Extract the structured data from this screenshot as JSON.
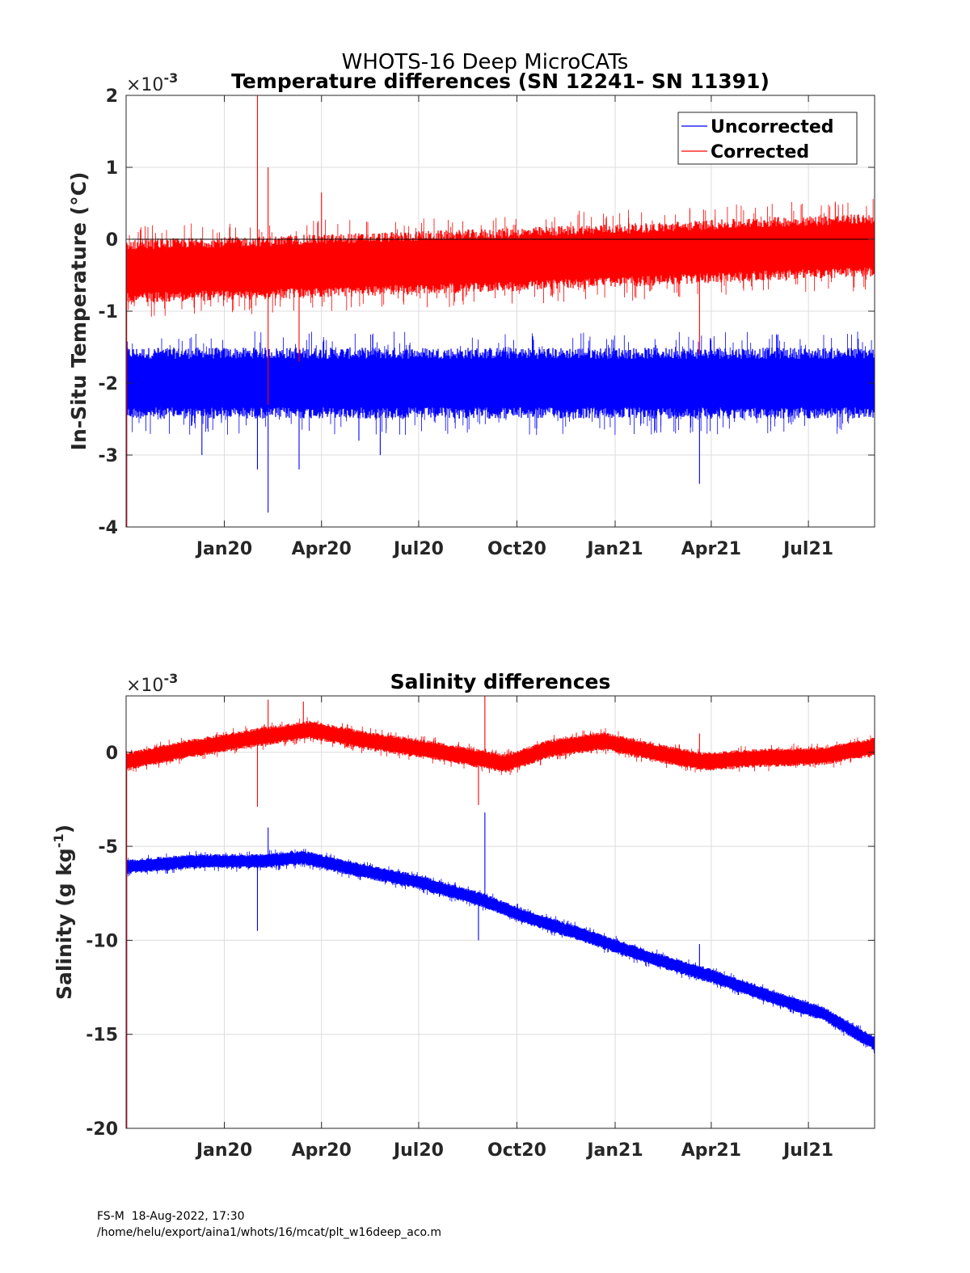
{
  "figure": {
    "suptitle": "WHOTS-16 Deep MicroCATs",
    "footer_line1": "FS-M  18-Aug-2022, 17:30",
    "footer_line2": "/home/helu/export/aina1/whots/16/mcat/plt_w16deep_aco.m"
  },
  "colors": {
    "uncorrected": "#0000ff",
    "corrected": "#ff0000",
    "zero_line": "#000000",
    "grid": "#dcdcdc",
    "axes": "#262626"
  },
  "chart_data": [
    {
      "type": "line",
      "title": "Temperature differences (SN 12241- SN 11391)",
      "ylabel": "In-Situ Temperature (°C)",
      "xlabel": "",
      "exponent_label": "×10",
      "exponent_power": "-3",
      "x_range": [
        "2019-10-01",
        "2021-09-01"
      ],
      "ylim": [
        -4,
        2
      ],
      "yticks": [
        -4,
        -3,
        -2,
        -1,
        0,
        1,
        2
      ],
      "xtick_labels": [
        "Jan20",
        "Apr20",
        "Jul20",
        "Oct20",
        "Jan21",
        "Apr21",
        "Jul21"
      ],
      "xtick_dates": [
        "2020-01-01",
        "2020-04-01",
        "2020-07-01",
        "2020-10-01",
        "2021-01-01",
        "2021-04-01",
        "2021-07-01"
      ],
      "grid": true,
      "zero_line": true,
      "legend": {
        "placement": "top-right",
        "entries": [
          "Uncorrected",
          "Corrected"
        ]
      },
      "series": [
        {
          "name": "Uncorrected",
          "color": "#0000ff",
          "x": [
            "2019-10-01",
            "2019-12-01",
            "2020-02-01",
            "2020-04-01",
            "2020-06-01",
            "2020-08-01",
            "2020-10-01",
            "2020-12-01",
            "2021-02-01",
            "2021-04-01",
            "2021-06-01",
            "2021-08-01",
            "2021-09-01"
          ],
          "y_center": [
            -2.0,
            -2.0,
            -2.0,
            -2.0,
            -2.0,
            -2.0,
            -2.0,
            -2.0,
            -2.0,
            -2.0,
            -2.0,
            -2.0,
            -2.0
          ],
          "band_halfwidth": 0.45,
          "spikes": [
            {
              "x": "2019-12-11",
              "y": -3.0
            },
            {
              "x": "2020-02-01",
              "y": -3.2
            },
            {
              "x": "2020-02-11",
              "y": -3.8
            },
            {
              "x": "2020-03-11",
              "y": -3.2
            },
            {
              "x": "2020-05-06",
              "y": -2.8
            },
            {
              "x": "2020-05-26",
              "y": -3.0
            },
            {
              "x": "2021-03-21",
              "y": -3.4
            }
          ]
        },
        {
          "name": "Corrected",
          "color": "#ff0000",
          "x": [
            "2019-10-01",
            "2019-12-01",
            "2020-02-01",
            "2020-04-01",
            "2020-06-01",
            "2020-08-01",
            "2020-10-01",
            "2020-12-01",
            "2021-02-01",
            "2021-04-01",
            "2021-06-01",
            "2021-08-01",
            "2021-09-01"
          ],
          "y_center": [
            -0.45,
            -0.42,
            -0.4,
            -0.37,
            -0.34,
            -0.31,
            -0.28,
            -0.24,
            -0.21,
            -0.17,
            -0.13,
            -0.1,
            -0.08
          ],
          "band_halfwidth": 0.4,
          "spikes": [
            {
              "x": "2020-02-01",
              "y": 2.0
            },
            {
              "x": "2020-02-11",
              "y": 1.0
            },
            {
              "x": "2020-04-01",
              "y": 0.65
            },
            {
              "x": "2020-02-11",
              "y": -2.3
            },
            {
              "x": "2021-03-21",
              "y": -1.6
            },
            {
              "x": "2020-03-11",
              "y": -1.7
            }
          ]
        }
      ]
    },
    {
      "type": "line",
      "title": "Salinity differences",
      "ylabel": "Salinity (g kg",
      "ylabel_sup": "-1",
      "ylabel_tail": ")",
      "xlabel": "",
      "exponent_label": "×10",
      "exponent_power": "-3",
      "x_range": [
        "2019-10-01",
        "2021-09-01"
      ],
      "ylim": [
        -20,
        3
      ],
      "yticks": [
        -20,
        -15,
        -10,
        -5,
        0
      ],
      "xtick_labels": [
        "Jan20",
        "Apr20",
        "Jul20",
        "Oct20",
        "Jan21",
        "Apr21",
        "Jul21"
      ],
      "xtick_dates": [
        "2020-01-01",
        "2020-04-01",
        "2020-07-01",
        "2020-10-01",
        "2021-01-01",
        "2021-04-01",
        "2021-07-01"
      ],
      "grid": true,
      "series": [
        {
          "name": "Uncorrected",
          "color": "#0000ff",
          "x": [
            "2019-10-01",
            "2019-12-01",
            "2020-02-01",
            "2020-03-15",
            "2020-05-01",
            "2020-07-01",
            "2020-09-01",
            "2020-10-01",
            "2020-12-01",
            "2021-02-01",
            "2021-04-01",
            "2021-06-01",
            "2021-07-15",
            "2021-09-01"
          ],
          "y_center": [
            -6.1,
            -5.8,
            -5.8,
            -5.6,
            -6.2,
            -6.9,
            -7.9,
            -8.6,
            -9.7,
            -10.9,
            -11.9,
            -13.1,
            -13.9,
            -15.5
          ],
          "band_halfwidth": 0.35,
          "spikes": [
            {
              "x": "2020-02-01",
              "y": -9.5
            },
            {
              "x": "2020-02-11",
              "y": -4.0
            },
            {
              "x": "2020-08-26",
              "y": -10.0
            },
            {
              "x": "2020-09-01",
              "y": -3.2
            },
            {
              "x": "2021-03-21",
              "y": -10.2
            }
          ]
        },
        {
          "name": "Corrected",
          "color": "#ff0000",
          "x": [
            "2019-10-01",
            "2019-12-01",
            "2020-02-01",
            "2020-03-22",
            "2020-05-15",
            "2020-07-15",
            "2020-09-20",
            "2020-11-01",
            "2020-12-20",
            "2021-02-15",
            "2021-03-25",
            "2021-05-15",
            "2021-07-15",
            "2021-09-01"
          ],
          "y_center": [
            -0.5,
            0.2,
            0.8,
            1.2,
            0.6,
            0.1,
            -0.6,
            0.2,
            0.6,
            -0.1,
            -0.5,
            -0.3,
            -0.2,
            0.3
          ],
          "band_halfwidth": 0.45,
          "spikes": [
            {
              "x": "2020-02-01",
              "y": -2.9
            },
            {
              "x": "2020-02-11",
              "y": 2.8
            },
            {
              "x": "2020-08-26",
              "y": -2.8
            },
            {
              "x": "2020-09-01",
              "y": 3.0
            },
            {
              "x": "2020-03-15",
              "y": 2.7
            },
            {
              "x": "2021-03-21",
              "y": 1.0
            }
          ]
        }
      ]
    }
  ]
}
